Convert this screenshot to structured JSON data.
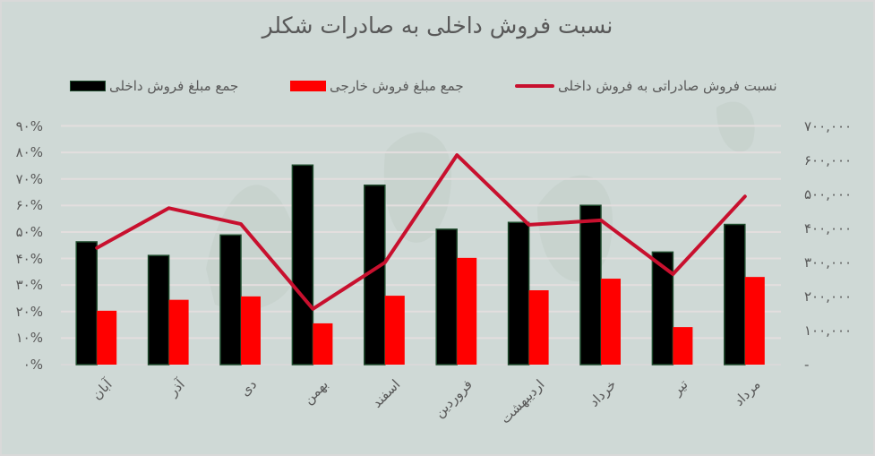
{
  "chart_data": {
    "type": "bar",
    "title": "نسبت فروش داخلی به صادرات شکلر",
    "categories": [
      "آبان",
      "آذر",
      "دی",
      "بهمن",
      "اسفند",
      "فروردین",
      "اردیبهشت",
      "خرداد",
      "تیر",
      "مرداد"
    ],
    "series": [
      {
        "name": "جمع مبلغ فروش داخلی",
        "type": "bar",
        "axis": "right",
        "color": "#000000",
        "values": [
          360000,
          320000,
          380000,
          585000,
          526000,
          397000,
          417000,
          467000,
          330000,
          411000
        ]
      },
      {
        "name": "جمع مبلغ  فروش خارجی",
        "type": "bar",
        "axis": "right",
        "color": "#ff0000",
        "values": [
          158000,
          190000,
          200000,
          121000,
          202000,
          313000,
          218000,
          252000,
          110000,
          257000
        ]
      },
      {
        "name": "نسبت فروش صادراتی به فروش داخلی",
        "type": "line",
        "axis": "left",
        "color": "#c8102e",
        "values": [
          0.44,
          0.59,
          0.53,
          0.21,
          0.385,
          0.79,
          0.527,
          0.544,
          0.341,
          0.634
        ]
      }
    ],
    "left_axis": {
      "ylim": [
        0,
        0.9
      ],
      "ticks": [
        "۰%",
        "۱۰%",
        "۲۰%",
        "۳۰%",
        "۴۰%",
        "۵۰%",
        "۶۰%",
        "۷۰%",
        "۸۰%",
        "۹۰%"
      ]
    },
    "right_axis": {
      "ylim": [
        0,
        700000
      ],
      "ticks": [
        "-",
        "۱۰۰,۰۰۰",
        "۲۰۰,۰۰۰",
        "۳۰۰,۰۰۰",
        "۴۰۰,۰۰۰",
        "۵۰۰,۰۰۰",
        "۶۰۰,۰۰۰",
        "۷۰۰,۰۰۰"
      ]
    },
    "grid": true,
    "legend_position": "top",
    "xlabel": "",
    "ylabel": ""
  },
  "legend": {
    "domestic": "جمع مبلغ فروش داخلی",
    "foreign": "جمع مبلغ  فروش خارجی",
    "ratio": "نسبت فروش صادراتی به فروش داخلی"
  }
}
